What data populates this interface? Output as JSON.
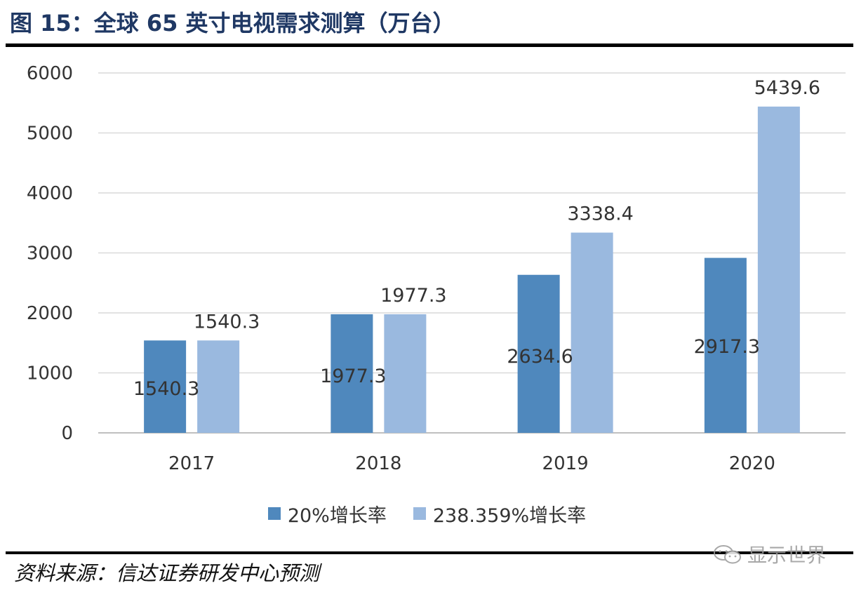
{
  "header": {
    "title": "图 15：全球 65 英寸电视需求测算（万台）"
  },
  "chart_data": {
    "type": "bar",
    "categories": [
      "2017",
      "2018",
      "2019",
      "2020"
    ],
    "series": [
      {
        "name": "20%增长率",
        "values": [
          1540.3,
          1977.3,
          2634.6,
          2917.3
        ],
        "color": "#4f88bd"
      },
      {
        "name": "238.359%增长率",
        "values": [
          1540.3,
          1977.3,
          3338.4,
          5439.6
        ],
        "color": "#9ab9df"
      }
    ],
    "value_labels": [
      [
        "1540.3",
        "1977.3",
        "2634.6",
        "2917.3"
      ],
      [
        "1540.3",
        "1977.3",
        "3338.4",
        "5439.6"
      ]
    ],
    "yticks": [
      "0",
      "1000",
      "2000",
      "3000",
      "4000",
      "5000",
      "6000"
    ],
    "ylim": [
      0,
      6000
    ],
    "grid": true,
    "legend": "bottom"
  },
  "footer": {
    "source": "资料来源：信达证券研发中心预测",
    "watermark": "显示世界"
  }
}
